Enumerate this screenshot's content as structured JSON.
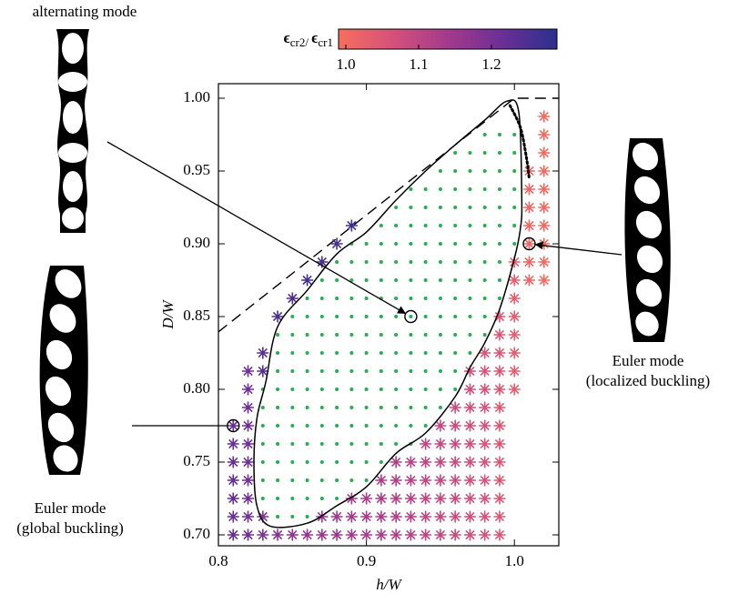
{
  "chart_data": {
    "type": "scatter",
    "xlabel": "h/W",
    "ylabel": "D/W",
    "xlim": [
      0.8,
      1.03
    ],
    "ylim": [
      0.6925,
      1.01
    ],
    "xticks": [
      0.8,
      0.9,
      {
        "value": 1,
        "label": "1.0"
      }
    ],
    "yticks": [
      {
        "value": 0.7,
        "label": "0.70"
      },
      0.75,
      {
        "value": 0.8,
        "label": "0.80"
      },
      0.85,
      {
        "value": 0.9,
        "label": "0.90"
      },
      0.95,
      {
        "value": 1,
        "label": "1.00"
      }
    ],
    "colorbar": {
      "label": [
        "ϵ",
        "cr2/ ",
        "ϵ",
        "cr1"
      ],
      "lim": [
        0.99,
        1.29
      ],
      "ticks": [
        {
          "value": 1,
          "label": "1.0"
        },
        1.1,
        1.2
      ],
      "colormap": [
        "#f66f5c",
        "#d5517b",
        "#a43a8d",
        "#6b2f95",
        "#2b308e"
      ]
    },
    "asterisks": [
      {
        "x": 0.81,
        "y": [
          0.7,
          0.7125,
          0.725,
          0.7375,
          0.75,
          0.7625,
          0.775
        ],
        "values": [
          1.22,
          1.22,
          1.22,
          1.22,
          1.22,
          1.22,
          1.22
        ]
      },
      {
        "x": 0.82,
        "y": [
          0.7,
          0.7125,
          0.725,
          0.7375,
          0.75,
          0.7625,
          0.775,
          0.7875,
          0.8,
          0.8125
        ],
        "values": [
          1.21,
          1.21,
          1.21,
          1.21,
          1.21,
          1.21,
          1.21,
          1.21,
          1.21,
          1.21
        ]
      },
      {
        "x": 0.83,
        "y": [
          0.7,
          0.7125,
          0.8125,
          0.825
        ],
        "values": [
          1.19,
          1.19,
          1.24,
          1.24
        ]
      },
      {
        "x": 0.84,
        "y": [
          0.7,
          0.85
        ],
        "values": [
          1.18,
          1.25
        ]
      },
      {
        "x": 0.85,
        "y": [
          0.7,
          0.8625
        ],
        "values": [
          1.17,
          1.25
        ]
      },
      {
        "x": 0.86,
        "y": [
          0.7,
          0.875
        ],
        "values": [
          1.16,
          1.26
        ]
      },
      {
        "x": 0.87,
        "y": [
          0.7,
          0.7125,
          0.8875
        ],
        "values": [
          1.15,
          1.15,
          1.26
        ]
      },
      {
        "x": 0.88,
        "y": [
          0.7,
          0.7125,
          0.9
        ],
        "values": [
          1.15,
          1.15,
          1.26
        ]
      },
      {
        "x": 0.89,
        "y": [
          0.7,
          0.7125,
          0.725,
          0.9125
        ],
        "values": [
          1.14,
          1.14,
          1.14,
          1.27
        ]
      },
      {
        "x": 0.9,
        "y": [
          0.7,
          0.7125,
          0.725
        ],
        "values": [
          1.13,
          1.13,
          1.13
        ]
      },
      {
        "x": 0.91,
        "y": [
          0.7,
          0.7125,
          0.725,
          0.7375
        ],
        "values": [
          1.13,
          1.13,
          1.13,
          1.13
        ]
      },
      {
        "x": 0.92,
        "y": [
          0.7,
          0.7125,
          0.725,
          0.7375,
          0.75
        ],
        "values": [
          1.12,
          1.12,
          1.12,
          1.12,
          1.12
        ]
      },
      {
        "x": 0.93,
        "y": [
          0.7,
          0.7125,
          0.725,
          0.7375,
          0.75
        ],
        "values": [
          1.11,
          1.11,
          1.11,
          1.11,
          1.11
        ]
      },
      {
        "x": 0.94,
        "y": [
          0.7,
          0.7125,
          0.725,
          0.7375,
          0.75,
          0.7625
        ],
        "values": [
          1.1,
          1.1,
          1.1,
          1.1,
          1.1,
          1.1
        ]
      },
      {
        "x": 0.95,
        "y": [
          0.7,
          0.7125,
          0.725,
          0.7375,
          0.75,
          0.7625,
          0.775
        ],
        "values": [
          1.09,
          1.09,
          1.09,
          1.09,
          1.09,
          1.09,
          1.09
        ]
      },
      {
        "x": 0.96,
        "y": [
          0.7,
          0.7125,
          0.725,
          0.7375,
          0.75,
          0.7625,
          0.775,
          0.7875
        ],
        "values": [
          1.08,
          1.08,
          1.08,
          1.08,
          1.08,
          1.08,
          1.08,
          1.08
        ]
      },
      {
        "x": 0.97,
        "y": [
          0.7,
          0.7125,
          0.725,
          0.7375,
          0.75,
          0.7625,
          0.775,
          0.7875,
          0.8,
          0.8125
        ],
        "values": [
          1.07,
          1.07,
          1.07,
          1.07,
          1.07,
          1.07,
          1.07,
          1.07,
          1.07,
          1.07
        ]
      },
      {
        "x": 0.98,
        "y": [
          0.7,
          0.7125,
          0.725,
          0.7375,
          0.75,
          0.7625,
          0.775,
          0.7875,
          0.8,
          0.8125,
          0.825
        ],
        "values": [
          1.06,
          1.06,
          1.06,
          1.06,
          1.06,
          1.06,
          1.06,
          1.06,
          1.06,
          1.06,
          1.06
        ]
      },
      {
        "x": 0.99,
        "y": [
          0.7,
          0.7125,
          0.725,
          0.7375,
          0.75,
          0.7625,
          0.775,
          0.7875,
          0.8,
          0.8125,
          0.825,
          0.8375,
          0.85
        ],
        "values": [
          1.05,
          1.05,
          1.05,
          1.05,
          1.05,
          1.05,
          1.05,
          1.05,
          1.05,
          1.05,
          1.05,
          1.05,
          1.05
        ]
      },
      {
        "x": 1,
        "y": [
          0.8,
          0.8125,
          0.825,
          0.8375,
          0.85,
          0.8625,
          0.875,
          0.8875
        ],
        "values": [
          1.03,
          1.03,
          1.03,
          1.03,
          1.03,
          1.03,
          1.03,
          1.03
        ]
      },
      {
        "x": 1.01,
        "y": [
          0.875,
          0.8875,
          0.9,
          0.9125,
          0.925,
          0.9375,
          0.95
        ],
        "values": [
          1.01,
          1.01,
          1.01,
          1.01,
          1.01,
          1.01,
          1.01
        ]
      },
      {
        "x": 1.02,
        "y": [
          0.875,
          0.8875,
          0.9,
          0.9125,
          0.925,
          0.9375,
          0.95,
          0.9625,
          0.975,
          0.9875
        ],
        "values": [
          1,
          1,
          1,
          1,
          1,
          1,
          1,
          1,
          1,
          1
        ]
      }
    ],
    "dots": {
      "color": "#27ae4f",
      "columns": [
        {
          "x": 0.83,
          "y": [
            0.725,
            0.7375,
            0.75,
            0.7625,
            0.775,
            0.7875,
            0.8
          ]
        },
        {
          "x": 0.84,
          "y": [
            0.7125,
            0.725,
            0.7375,
            0.75,
            0.7625,
            0.775,
            0.7875,
            0.8,
            0.8125,
            0.825,
            0.8375
          ]
        },
        {
          "x": 0.85,
          "y": [
            0.7125,
            0.725,
            0.7375,
            0.75,
            0.7625,
            0.775,
            0.7875,
            0.8,
            0.8125,
            0.825,
            0.8375,
            0.85
          ]
        },
        {
          "x": 0.86,
          "y": [
            0.7125,
            0.725,
            0.7375,
            0.75,
            0.7625,
            0.775,
            0.7875,
            0.8,
            0.8125,
            0.825,
            0.8375,
            0.85,
            0.8625
          ]
        },
        {
          "x": 0.87,
          "y": [
            0.725,
            0.7375,
            0.75,
            0.7625,
            0.775,
            0.7875,
            0.8,
            0.8125,
            0.825,
            0.8375,
            0.85,
            0.8625,
            0.875
          ]
        },
        {
          "x": 0.88,
          "y": [
            0.725,
            0.7375,
            0.75,
            0.7625,
            0.775,
            0.7875,
            0.8,
            0.8125,
            0.825,
            0.8375,
            0.85,
            0.8625,
            0.875,
            0.8875
          ]
        },
        {
          "x": 0.89,
          "y": [
            0.7375,
            0.75,
            0.7625,
            0.775,
            0.7875,
            0.8,
            0.8125,
            0.825,
            0.8375,
            0.85,
            0.8625,
            0.875,
            0.8875,
            0.9
          ]
        },
        {
          "x": 0.9,
          "y": [
            0.7375,
            0.75,
            0.7625,
            0.775,
            0.7875,
            0.8,
            0.8125,
            0.825,
            0.8375,
            0.85,
            0.8625,
            0.875,
            0.8875,
            0.9
          ]
        },
        {
          "x": 0.91,
          "y": [
            0.75,
            0.7625,
            0.775,
            0.7875,
            0.8,
            0.8125,
            0.825,
            0.8375,
            0.85,
            0.8625,
            0.875,
            0.8875,
            0.9,
            0.9125
          ]
        },
        {
          "x": 0.92,
          "y": [
            0.7625,
            0.775,
            0.7875,
            0.8,
            0.8125,
            0.825,
            0.8375,
            0.85,
            0.8625,
            0.875,
            0.8875,
            0.9,
            0.9125,
            0.925
          ]
        },
        {
          "x": 0.93,
          "y": [
            0.7625,
            0.775,
            0.7875,
            0.8,
            0.8125,
            0.825,
            0.8375,
            0.85,
            0.8625,
            0.875,
            0.8875,
            0.9,
            0.9125,
            0.925,
            0.9375
          ]
        },
        {
          "x": 0.94,
          "y": [
            0.775,
            0.7875,
            0.8,
            0.8125,
            0.825,
            0.8375,
            0.85,
            0.8625,
            0.875,
            0.8875,
            0.9,
            0.9125,
            0.925,
            0.9375
          ]
        },
        {
          "x": 0.95,
          "y": [
            0.7875,
            0.8,
            0.8125,
            0.825,
            0.8375,
            0.85,
            0.8625,
            0.875,
            0.8875,
            0.9,
            0.9125,
            0.925,
            0.9375,
            0.95
          ]
        },
        {
          "x": 0.96,
          "y": [
            0.8,
            0.8125,
            0.825,
            0.8375,
            0.85,
            0.8625,
            0.875,
            0.8875,
            0.9,
            0.9125,
            0.925,
            0.9375,
            0.95,
            0.9625
          ]
        },
        {
          "x": 0.97,
          "y": [
            0.825,
            0.8375,
            0.85,
            0.8625,
            0.875,
            0.8875,
            0.9,
            0.9125,
            0.925,
            0.9375,
            0.95,
            0.9625
          ]
        },
        {
          "x": 0.98,
          "y": [
            0.8375,
            0.85,
            0.8625,
            0.875,
            0.8875,
            0.9,
            0.9125,
            0.925,
            0.9375,
            0.95,
            0.9625,
            0.975
          ]
        },
        {
          "x": 0.99,
          "y": [
            0.8625,
            0.875,
            0.8875,
            0.9,
            0.9125,
            0.925,
            0.9375,
            0.95,
            0.9625,
            0.975
          ]
        },
        {
          "x": 1,
          "y": [
            0.9,
            0.9125,
            0.925,
            0.9375,
            0.95,
            0.9625,
            0.975
          ]
        }
      ]
    },
    "boundary": {
      "x": [
        0.835,
        0.826,
        0.824,
        0.826,
        0.832,
        0.84,
        0.86,
        0.88,
        0.9,
        0.92,
        0.94,
        0.96,
        0.98,
        0.995,
        1.003,
        1.005,
        1.004,
        1,
        0.99,
        0.98,
        0.97,
        0.96,
        0.94,
        0.92,
        0.9,
        0.88,
        0.86,
        0.835
      ],
      "y": [
        0.706,
        0.72,
        0.75,
        0.78,
        0.805,
        0.843,
        0.868,
        0.893,
        0.908,
        0.93,
        0.95,
        0.968,
        0.985,
        0.998,
        0.99,
        0.93,
        0.91,
        0.89,
        0.855,
        0.832,
        0.815,
        0.795,
        0.77,
        0.756,
        0.733,
        0.72,
        0.708,
        0.706
      ]
    },
    "dotted": {
      "x": [
        0.997,
        1.004,
        1.008,
        1.01
      ],
      "y": [
        0.995,
        0.98,
        0.96,
        0.945
      ]
    },
    "dashed": {
      "x": [
        0.8,
        1,
        1.03
      ],
      "y": [
        0.8395,
        1,
        1
      ]
    },
    "annotations": [
      {
        "text": [
          "alternating mode"
        ],
        "x": 0.93,
        "y": 0.85
      },
      {
        "text": [
          "Euler mode",
          "(localized buckling)"
        ],
        "x": 1.01,
        "y": 0.9
      },
      {
        "text": [
          "Euler mode",
          "(global buckling)"
        ],
        "x": 0.81,
        "y": 0.775
      }
    ]
  }
}
